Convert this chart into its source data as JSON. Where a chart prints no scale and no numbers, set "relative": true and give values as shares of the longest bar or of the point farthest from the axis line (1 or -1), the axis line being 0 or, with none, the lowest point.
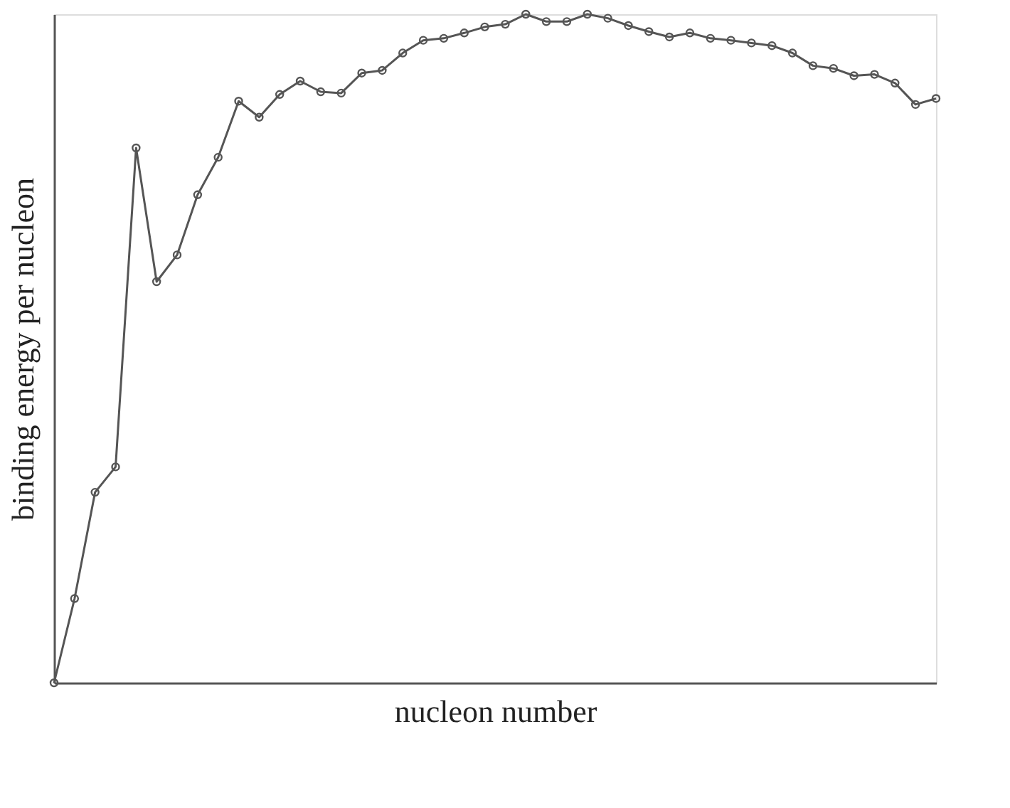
{
  "chart_data": {
    "type": "line",
    "relative": true,
    "xlabel": "nucleon number",
    "ylabel": "binding energy per nucleon",
    "tick_labels": false,
    "grid": false,
    "marker": "circle",
    "line_style": "solid",
    "categories": [
      null,
      null,
      null,
      null,
      null,
      null,
      null,
      null,
      null,
      null,
      null,
      null,
      null,
      null,
      null,
      null,
      null,
      null,
      null,
      null,
      null,
      null,
      null,
      null,
      null,
      null,
      null,
      null,
      null,
      null,
      null,
      null,
      null,
      null,
      null,
      null,
      null,
      null,
      null,
      null,
      null,
      null,
      null,
      null
    ],
    "series": [
      {
        "color": "#555555",
        "values": [
          0,
          0.126,
          0.285,
          0.323,
          0.8,
          0.6,
          0.64,
          0.73,
          0.786,
          0.87,
          0.846,
          0.88,
          0.9,
          0.884,
          0.882,
          0.912,
          0.916,
          0.942,
          0.961,
          0.964,
          0.972,
          0.981,
          0.985,
          1,
          0.989,
          0.989,
          1,
          0.994,
          0.983,
          0.974,
          0.966,
          0.972,
          0.964,
          0.961,
          0.957,
          0.953,
          0.942,
          0.923,
          0.919,
          0.908,
          0.91,
          0.897,
          0.865,
          0.874
        ]
      }
    ]
  }
}
